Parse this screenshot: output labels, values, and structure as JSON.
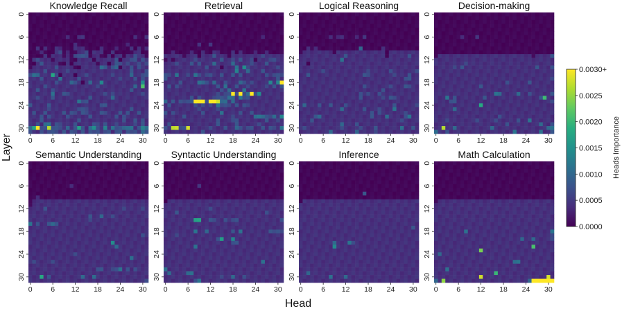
{
  "chart_data": {
    "type": "heatmap",
    "xlabel": "Head",
    "ylabel": "Layer",
    "x_ticks": [
      "0",
      "6",
      "12",
      "18",
      "24",
      "30"
    ],
    "y_ticks": [
      "0",
      "6",
      "12",
      "18",
      "24",
      "30"
    ],
    "x_range": [
      0,
      31
    ],
    "y_range": [
      0,
      31
    ],
    "value_encoding": "each digit d = d/9 * 0.0030 (levels 0-9, 9 = 0.0030+); rows = layers 0..31, columns = heads 0..31",
    "colorbar": {
      "label": "Heads Importance",
      "min": 0.0,
      "max": 0.003,
      "ticks": [
        "0.0000",
        "0.0005",
        "0.0010",
        "0.0015",
        "0.0020",
        "0.0025",
        "0.0030+"
      ],
      "colormap": "viridis"
    },
    "panels": [
      {
        "title": "Knowledge Recall",
        "rows": [
          "00000000000000000000000000000000",
          "00000000000000000000000000000000",
          "00000000000000000000000000000000",
          "00000000000000000000000000000000",
          "00000000000000000000000000000000",
          "00000000000000000000000000000000",
          "00000000001001100000000000001001",
          "00000000000000000000000000000000",
          "00000000000010000000000000100000",
          "00101001100011100001000100010101",
          "00010001201001120111001000001100",
          "00001011101022220110010110112110",
          "01211101111001111011111201122121",
          "00121111001011111101101221211212",
          "01111112111100111113212301121211",
          "11112111112111111111111111121112",
          "23311152011101121111112111131122",
          "11121111311112111111111121112121",
          "11111112111321013114111111111141",
          "11112111111111111121111111113161",
          "11211121111111111111111111121111",
          "11111131122111111111212111111121",
          "11211121111111112111113111111111",
          "11111111111113221111111111111111",
          "21111211111111111112211111111111",
          "11111211111112221111111111121111",
          "12112111121221221112211121211211",
          "11121211112111112111111212111111",
          "11121111111112111111111112112121",
          "11213312211121111221211211112121",
          "35922822213125213421413223331243",
          "21121222121221212221221221222132"
        ]
      },
      {
        "title": "Retrieval",
        "rows": [
          "00000000000000000000000000000000",
          "00000000000000000000000000000000",
          "00000000000000000000000000000000",
          "00000000000000000000000000000000",
          "00000000000000000000000000000000",
          "00000000000000000000000000000000",
          "00000000000000000000000000100000",
          "00000000000000000000000000000000",
          "00000000010010000000000000000000",
          "00000000000000000000000000000000",
          "00100001001001100010100010010000",
          "11111011101112111011111111211111",
          "01011111211111121121211201112211",
          "11121112121113111131111211121111",
          "11111111111211101113142111111121",
          "11111111111111111114113111211111",
          "22131121321221121121211111121222",
          "21111111111111111111111111111121",
          "11112111133213112111321211114149",
          "12121111111111213112112111121212",
          "11111111111111121311131111111111",
          "11111111111111212292923924111111",
          "11111112121112222331322111111111",
          "31212222999299833131111111111111",
          "12111111212121322212122111111111",
          "11111111121111211111111111111111",
          "21211111112111131111211211111111",
          "11111211111111111121111133322314",
          "11111111111111211122111111121121",
          "12111111111111211112111112111111",
          "21882281111121112113212211212213",
          "11111111112111111111111111111111"
        ]
      },
      {
        "title": "Logical Reasoning",
        "rows": [
          "00000000000000000000000000000000",
          "00000000000000000000000000000000",
          "00000000000000000000000000000000",
          "00000000000000000000000000000000",
          "00000000000000000000000000000000",
          "00000000000000000000000000000000",
          "00000000101100010100000000000000",
          "00000000000000000000000000000000",
          "00000000000000000000000000000000",
          "00101000000000003000001000000000",
          "01111111101111111111111011111111",
          "11111111111121111111111011111211",
          "11111111111311111111111111111111",
          "11011111111111111111111111111111",
          "11111111111111111111111111111111",
          "11111121111111111121111121111112",
          "11211111111111111221111112111211",
          "11111111111111111111111111112211",
          "11111111111111111111111111111111",
          "11111111111111111211111121112211",
          "11111111111111111111112111111111",
          "11111111111111112121121111111111",
          "11111111111111112111112122111111",
          "11111111111111111111111111111111",
          "13111211211121111111111112111112",
          "11111111111311111211121113111111",
          "11111111111111111112121111112111",
          "11112311111111111112111311112311",
          "11121111111111111111111111121111",
          "11111111111311121111111111111111",
          "12111111111211112111211111131121",
          "11111111311111131111211111111111"
        ]
      },
      {
        "title": "Decision-making",
        "rows": [
          "00000000000000000000000000000000",
          "00000000000000000000000000000000",
          "00000000000000000000000000000000",
          "00000000000000000000000000000000",
          "00000000000000000000000000000000",
          "00000000000000000000000000000000",
          "00000001000100000000000000000000",
          "00000000000000000000000000000000",
          "00000000000000000000000000000000",
          "00000000000000000000000000000000",
          "00000000000000000000000000000000",
          "01111111111111111111111111011112",
          "11111111111111111111111111111111",
          "11111111211111111111111111111111",
          "11111212111111111111111111121112",
          "11111111111111111111111111111111",
          "11111111111111111111111111111111",
          "11111111111111111111111111111112",
          "11111111111111111112111112111111",
          "11111111111121111111111111111111",
          "11111111111111111111111111111111",
          "11111111111111113311113112111112",
          "11131211111112111111111111112611",
          "11112211111111111111111111111112",
          "11111111111151111111111111111111",
          "11111311111111111111111111111111",
          "11111111111111111111111111111111",
          "11111111111111111211111111111111",
          "11121111111211112111112113111111",
          "11111111111111111112111111113112",
          "11811311111111131111111111111133",
          "31121111111111111111131111113112"
        ]
      },
      {
        "title": "Semantic Understanding",
        "rows": [
          "00000000000000000000000000000000",
          "00000000000000000000000000000000",
          "00000000000000000000000000000000",
          "00000000000000000000000000000000",
          "00000000000000000000000000000000",
          "00000000000000000000000000000000",
          "00000000000100000000000000000000",
          "00000000000000000000000000000000",
          "00000000000000000000000000000000",
          "00100000000000000000000000000000",
          "01111111111111111111111111111111",
          "01111111111111111111111111111111",
          "11112111111111111111111112111121",
          "11111111111111111111111111111111",
          "11111111111111112113112111111111",
          "11111111111111112111111111111111",
          "31211232111111111111111111111111",
          "11111111111111111111111111111111",
          "11111111111111111111111111111111",
          "11111111111111111111111111111121",
          "11111111111111111111111111111111",
          "11111111111111111111114111111111",
          "11111111111111111111111311111111",
          "11111111111111111111111111111111",
          "11111111111121111111111111111111",
          "11111111111111111111111111131111",
          "12111121111111111111111111111111",
          "11111111111111111111111111111111",
          "11111111111111111122112231212111",
          "11111111111111111111111111111111",
          "11151211111111311311111111111111",
          "11111111111111111111111111111112"
        ]
      },
      {
        "title": "Syntactic Understanding",
        "rows": [
          "00000000000000000000000000000000",
          "00000000000000000000000000000000",
          "00000000000000000000000000000000",
          "00000000000000000000000000000000",
          "00000000000000000000000000000000",
          "00000000000000000000000000000000",
          "00000000010000000000000000000000",
          "00000000000000000000000000000000",
          "00000000000000000000000000000000",
          "00000000000000000000000000000000",
          "01111111111111111111111111111111",
          "11111111111111111111111111111111",
          "11111111111121111111111111111111",
          "11121111111111111111111111121111",
          "11111111111111111111111111111111",
          "11111111551122112122111111111112",
          "11111111111111111111111111111111",
          "11111111111111111111111111111111",
          "11111111311311111121311111112222",
          "11121111111111111111111111111111",
          "11111111111111251141111111111111",
          "11111111111111111122111111111111",
          "11111111311111111111111111111111",
          "11111111111111111111111111111111",
          "11111111111111111111111111111111",
          "11111111111111111111111111111111",
          "11111111111111111111111111311111",
          "11111111111111111111111111111111",
          "31111111111111111111111111111111",
          "13111133111111111111111111111111",
          "11111111111111121131121111111111",
          "11111111231111111111111111111111"
        ]
      },
      {
        "title": "Inference",
        "rows": [
          "00000000000000000000000000000000",
          "00000000000000000000000000000000",
          "00000000000000000000000000000000",
          "00000000000000000000000000000000",
          "00000000000000000000000000000000",
          "00000000000000000000000000000000",
          "00000000000000000000000000000000",
          "00000000000000000000000000000000",
          "00000000000000000200000000000000",
          "00000000000000000000000000000000",
          "01111111111111111111111111111111",
          "11111111111111111111111111111111",
          "11111111111111111111111111111111",
          "11111111111111111111111111111111",
          "11111111111111111111111111111111",
          "11111111111111111111111111111111",
          "11111111111111111111111111111111",
          "11111111111111111111111111111121",
          "11111111111111111111111111111111",
          "11111111111111111111111111111111",
          "11111111111111111111111111111111",
          "11111111131113211111111111111111",
          "11111111141111111111111111111111",
          "11111111111111111111111111111111",
          "11111111111111111111111111111111",
          "11111111111111111111111111111111",
          "11111111111111111111111111111111",
          "11111111111111111111111111111111",
          "11111111111111111111111111111111",
          "11311111111111111111111111111111",
          "11111111311131111111111111111111",
          "11111111111111111111111111111111"
        ]
      },
      {
        "title": "Math Calculation",
        "rows": [
          "00000000000000000000000000000000",
          "00000000000000000000000000000000",
          "00000000000000000000000000000000",
          "00000000000000000000000000000000",
          "00000000000000000000000000000000",
          "00000000000000000000000000000000",
          "00000000000000000000000000000000",
          "00000000000000000000000000000000",
          "00000000000000000000000000000000",
          "00000000000000000000000000000000",
          "01111111111111111111111111111111",
          "11111111111111111111111111111111",
          "11111111111111111111111111111111",
          "11111111111111111111111111111111",
          "11111111111111111111111111111111",
          "11111111111111111111111111111111",
          "11111111111111111111111111111111",
          "11111111111111111111111111111111",
          "11111111311111111111111111111113",
          "11111111111111111111111111111112",
          "11111111111111111111111311311112",
          "11111111111111111111111111111111",
          "11111111111111111111111111611111",
          "11111111111171111111111111111111",
          "13111111111111111111111111111111",
          "11111111111111111111111111111111",
          "11111111111111111111133111111111",
          "11111111111111111111111111111111",
          "11131111111111111111111111111111",
          "11111111111111116111111111111111",
          "11111111111181111111111111111181",
          "31711111111111111111111113999999"
        ]
      }
    ]
  }
}
